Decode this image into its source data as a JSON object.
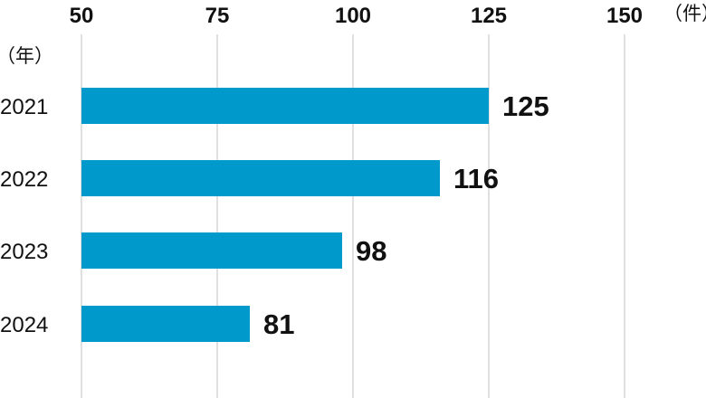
{
  "chart_data": {
    "type": "bar",
    "orientation": "horizontal",
    "categories": [
      "2021",
      "2022",
      "2023",
      "2024"
    ],
    "values": [
      125,
      116,
      98,
      81
    ],
    "xlim": [
      50,
      165
    ],
    "x_ticks": [
      "50",
      "75",
      "100",
      "125",
      "150"
    ],
    "x_unit_label": "（件）",
    "y_unit_label": "（年）",
    "data_labels": [
      "125",
      "116",
      "98",
      "81"
    ],
    "grid": true,
    "bar_color": "#0099CC"
  }
}
